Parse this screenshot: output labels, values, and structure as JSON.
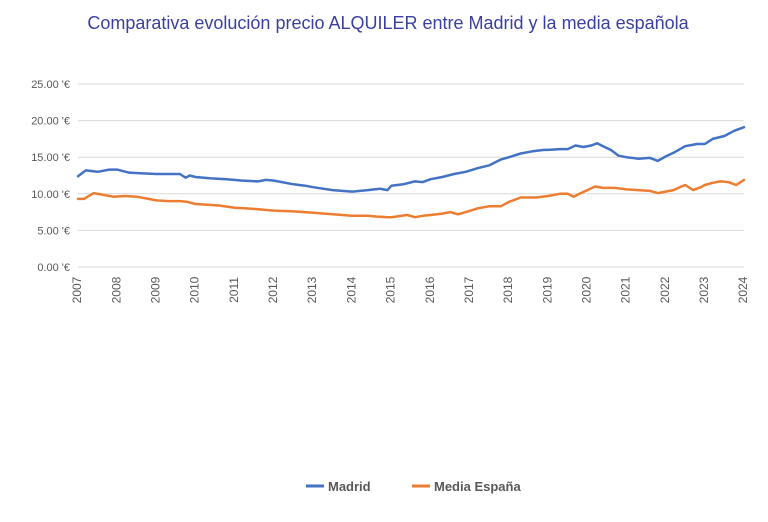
{
  "chart_data": {
    "type": "line",
    "title": "Comparativa evolución precio ALQUILER entre Madrid y la media española",
    "xlabel": "",
    "ylabel": "",
    "xlim": [
      2007,
      2024
    ],
    "ylim": [
      0,
      25
    ],
    "y_ticks": [
      "0.00 '€",
      "5.00 '€",
      "10.00 '€",
      "15.00 '€",
      "20.00 '€",
      "25.00 '€"
    ],
    "x_ticks": [
      "2007",
      "2008",
      "2009",
      "2010",
      "2011",
      "2012",
      "2013",
      "2014",
      "2015",
      "2016",
      "2017",
      "2018",
      "2019",
      "2020",
      "2021",
      "2022",
      "2023",
      "2024"
    ],
    "grid": "horizontal",
    "legend": "bottom-center",
    "series": [
      {
        "name": "Madrid",
        "color": "#4472c4",
        "x": [
          2007.0,
          2007.2,
          2007.5,
          2007.8,
          2008.0,
          2008.3,
          2008.6,
          2009.0,
          2009.3,
          2009.6,
          2009.75,
          2009.85,
          2010.0,
          2010.4,
          2010.8,
          2011.2,
          2011.6,
          2011.8,
          2012.0,
          2012.5,
          2012.8,
          2013.0,
          2013.5,
          2014.0,
          2014.4,
          2014.7,
          2014.9,
          2015.0,
          2015.3,
          2015.6,
          2015.8,
          2016.0,
          2016.3,
          2016.6,
          2016.9,
          2017.2,
          2017.5,
          2017.8,
          2018.0,
          2018.3,
          2018.6,
          2018.9,
          2019.0,
          2019.3,
          2019.5,
          2019.7,
          2019.9,
          2020.1,
          2020.25,
          2020.4,
          2020.6,
          2020.8,
          2021.0,
          2021.3,
          2021.6,
          2021.8,
          2022.0,
          2022.2,
          2022.5,
          2022.8,
          2023.0,
          2023.2,
          2023.5,
          2023.75,
          2024.0
        ],
        "values": [
          12.4,
          13.2,
          13.0,
          13.3,
          13.3,
          12.9,
          12.8,
          12.7,
          12.7,
          12.7,
          12.2,
          12.5,
          12.3,
          12.1,
          12.0,
          11.8,
          11.7,
          11.9,
          11.8,
          11.3,
          11.1,
          10.9,
          10.5,
          10.3,
          10.5,
          10.7,
          10.5,
          11.1,
          11.3,
          11.7,
          11.6,
          12.0,
          12.3,
          12.7,
          13.0,
          13.5,
          13.9,
          14.7,
          15.0,
          15.5,
          15.8,
          16.0,
          16.0,
          16.1,
          16.1,
          16.6,
          16.4,
          16.6,
          16.9,
          16.5,
          16.0,
          15.2,
          15.0,
          14.8,
          14.9,
          14.5,
          15.1,
          15.6,
          16.5,
          16.8,
          16.8,
          17.5,
          17.9,
          18.6,
          19.1
        ]
      },
      {
        "name": "Media España",
        "color": "#ed7d31",
        "x": [
          2007.0,
          2007.15,
          2007.4,
          2007.6,
          2007.9,
          2008.2,
          2008.5,
          2008.8,
          2009.0,
          2009.3,
          2009.6,
          2009.8,
          2010.0,
          2010.3,
          2010.6,
          2011.0,
          2011.3,
          2011.6,
          2012.0,
          2012.5,
          2013.0,
          2013.5,
          2014.0,
          2014.4,
          2014.6,
          2014.9,
          2015.0,
          2015.4,
          2015.6,
          2015.8,
          2016.0,
          2016.3,
          2016.5,
          2016.7,
          2016.9,
          2017.2,
          2017.5,
          2017.8,
          2018.0,
          2018.3,
          2018.7,
          2019.0,
          2019.3,
          2019.5,
          2019.65,
          2019.8,
          2020.0,
          2020.2,
          2020.4,
          2020.7,
          2021.0,
          2021.3,
          2021.6,
          2021.8,
          2022.0,
          2022.2,
          2022.4,
          2022.5,
          2022.7,
          2022.9,
          2023.0,
          2023.2,
          2023.4,
          2023.6,
          2023.8,
          2024.0
        ],
        "values": [
          9.3,
          9.3,
          10.1,
          9.9,
          9.6,
          9.7,
          9.6,
          9.3,
          9.1,
          9.0,
          9.0,
          8.9,
          8.6,
          8.5,
          8.4,
          8.1,
          8.0,
          7.9,
          7.7,
          7.6,
          7.4,
          7.2,
          7.0,
          7.0,
          6.9,
          6.8,
          6.8,
          7.1,
          6.8,
          7.0,
          7.1,
          7.3,
          7.5,
          7.2,
          7.5,
          8.0,
          8.3,
          8.3,
          8.9,
          9.5,
          9.5,
          9.7,
          10.0,
          10.0,
          9.6,
          10.0,
          10.5,
          11.0,
          10.8,
          10.8,
          10.6,
          10.5,
          10.4,
          10.1,
          10.3,
          10.5,
          11.0,
          11.2,
          10.5,
          10.9,
          11.2,
          11.5,
          11.7,
          11.6,
          11.2,
          11.9
        ]
      }
    ]
  }
}
